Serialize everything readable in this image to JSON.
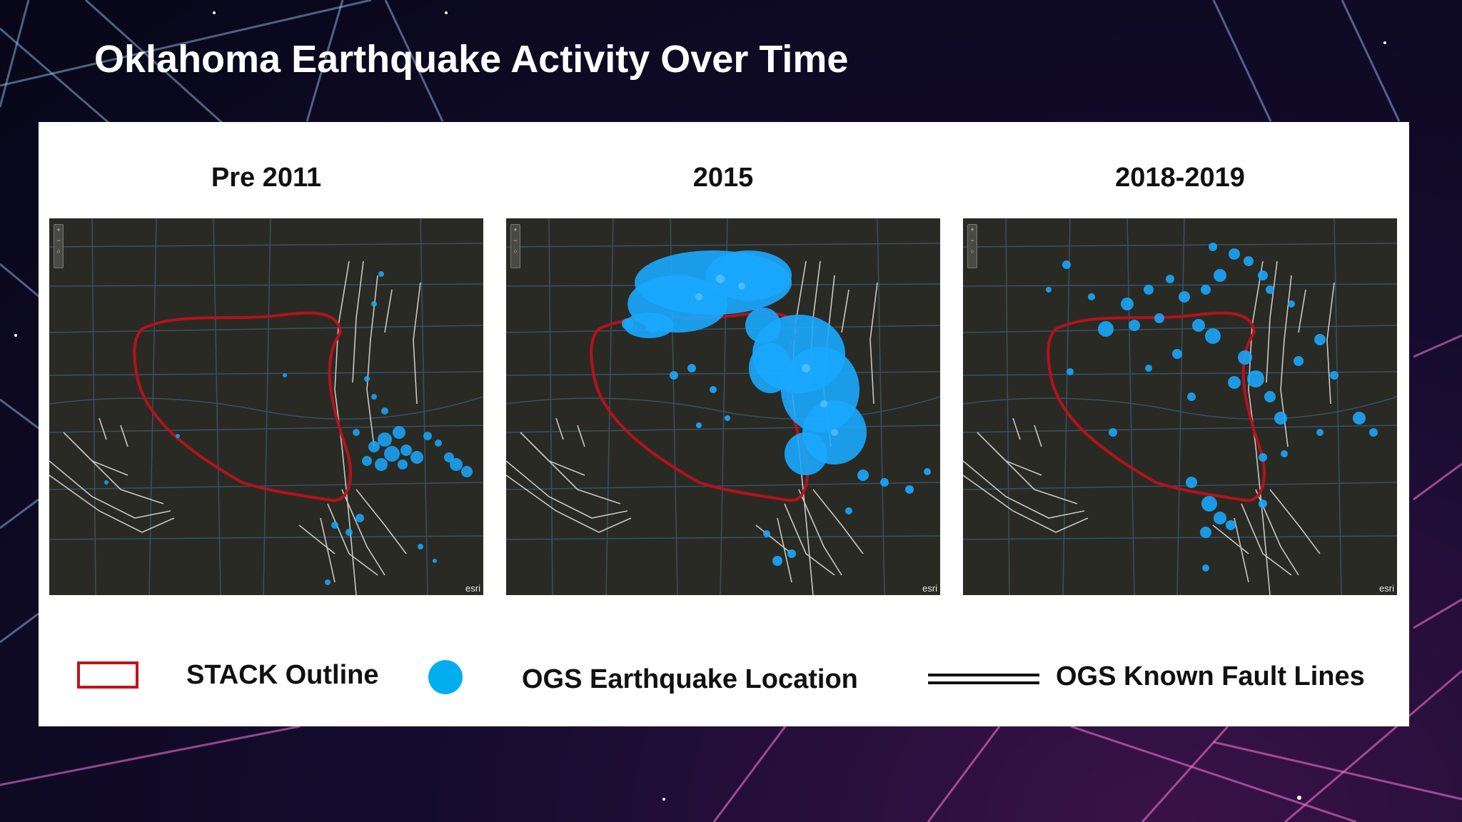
{
  "slide": {
    "title": "Oklahoma Earthquake Activity Over Time"
  },
  "maps": [
    {
      "title": "Pre 2011",
      "activity": "low",
      "attribution": "esri"
    },
    {
      "title": "2015",
      "activity": "very high",
      "attribution": "esri"
    },
    {
      "title": "2018-2019",
      "activity": "high",
      "attribution": "esri"
    }
  ],
  "legend": {
    "stack_outline_label": "STACK Outline",
    "earthquake_label": "OGS Earthquake Location",
    "fault_label": "OGS Known Fault Lines"
  },
  "colors": {
    "stack_outline": "#c0141c",
    "earthquake": "#00aeef",
    "fault_lines": "#d8d8d8",
    "basemap": "#2a2a24"
  }
}
